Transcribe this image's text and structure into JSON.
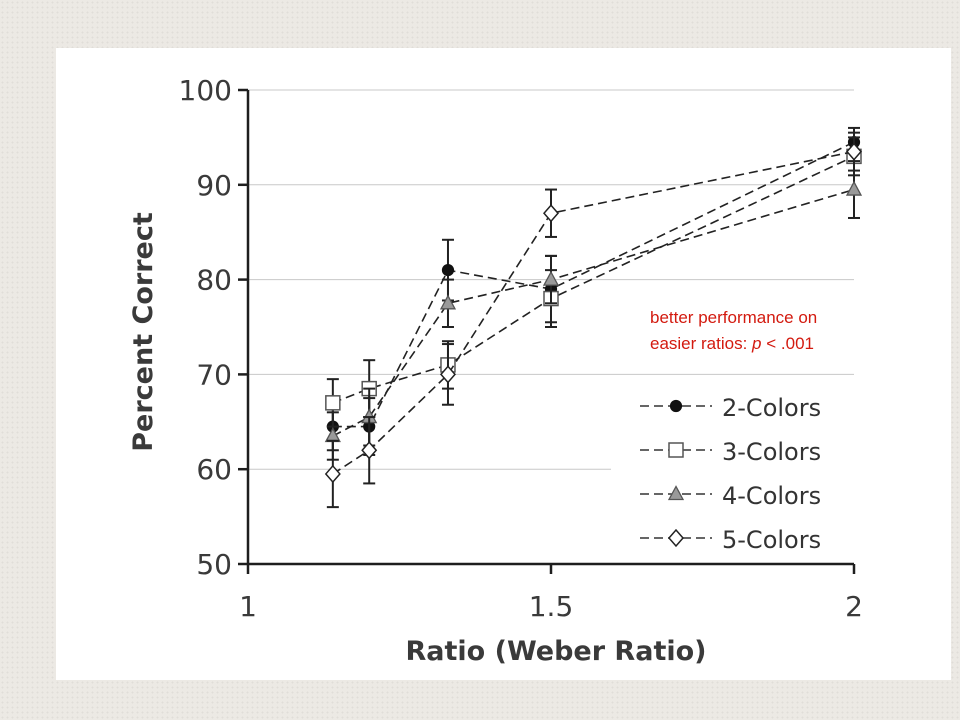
{
  "chart_data": {
    "type": "line",
    "title": "",
    "xlabel": "Ratio (Weber Ratio)",
    "ylabel": "Percent Correct",
    "xlim": [
      1,
      2
    ],
    "ylim": [
      50,
      100
    ],
    "x_ticks": [
      "1",
      "1.5",
      "2"
    ],
    "y_ticks": [
      "50",
      "60",
      "70",
      "80",
      "90",
      "100"
    ],
    "grid": "horizontal",
    "legend_position": "bottom-right",
    "series": [
      {
        "name": "2-Colors",
        "marker": "circle-filled",
        "x": [
          1.14,
          1.2,
          1.33,
          1.5,
          2
        ],
        "y": [
          64.5,
          64.5,
          81,
          79,
          94.5
        ],
        "error": [
          2.5,
          3,
          3.2,
          3.5,
          1.5
        ]
      },
      {
        "name": "3-Colors",
        "marker": "square-open",
        "x": [
          1.14,
          1.2,
          1.33,
          1.5,
          2
        ],
        "y": [
          67,
          68.5,
          71,
          78,
          93
        ],
        "error": [
          2.5,
          3,
          2.5,
          3,
          2
        ]
      },
      {
        "name": "4-Colors",
        "marker": "triangle-gray",
        "x": [
          1.14,
          1.2,
          1.33,
          1.5,
          2
        ],
        "y": [
          63.5,
          65.5,
          77.5,
          80,
          89.5
        ],
        "error": [
          2.5,
          3,
          2.5,
          2.5,
          3
        ]
      },
      {
        "name": "5-Colors",
        "marker": "diamond-open",
        "x": [
          1.14,
          1.2,
          1.33,
          1.5,
          2
        ],
        "y": [
          59.5,
          62,
          70,
          87,
          93.5
        ],
        "error": [
          3.5,
          3.5,
          3.2,
          2.5,
          2
        ]
      }
    ]
  },
  "annotation": {
    "line1": "better performance on",
    "line2_prefix": "easier ratios: ",
    "line2_italic": "p",
    "line2_suffix": " < .001"
  },
  "colors": {
    "annotation": "#d31a0f",
    "series_line": "#222222",
    "triangle_fill": "#9a9a9a"
  }
}
